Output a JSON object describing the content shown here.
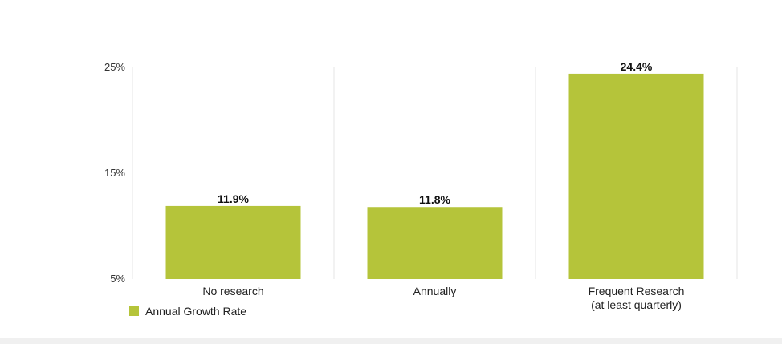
{
  "chart_data": {
    "type": "bar",
    "categories": [
      [
        "No research"
      ],
      [
        "Annually"
      ],
      [
        "Frequent Research",
        "(at least quarterly)"
      ]
    ],
    "series": [
      {
        "name": "Annual Growth Rate",
        "values": [
          11.9,
          11.8,
          24.4
        ],
        "color": "#b5c43a"
      }
    ],
    "data_labels": [
      "11.9%",
      "11.8%",
      "24.4%"
    ],
    "y_ticks": [
      {
        "value": 5,
        "label": "5%"
      },
      {
        "value": 15,
        "label": "15%"
      },
      {
        "value": 25,
        "label": "25%"
      }
    ],
    "ylim": [
      5,
      25
    ],
    "grid": "vertical-separators",
    "legend_position": "bottom-left",
    "title": "",
    "xlabel": "",
    "ylabel": ""
  }
}
